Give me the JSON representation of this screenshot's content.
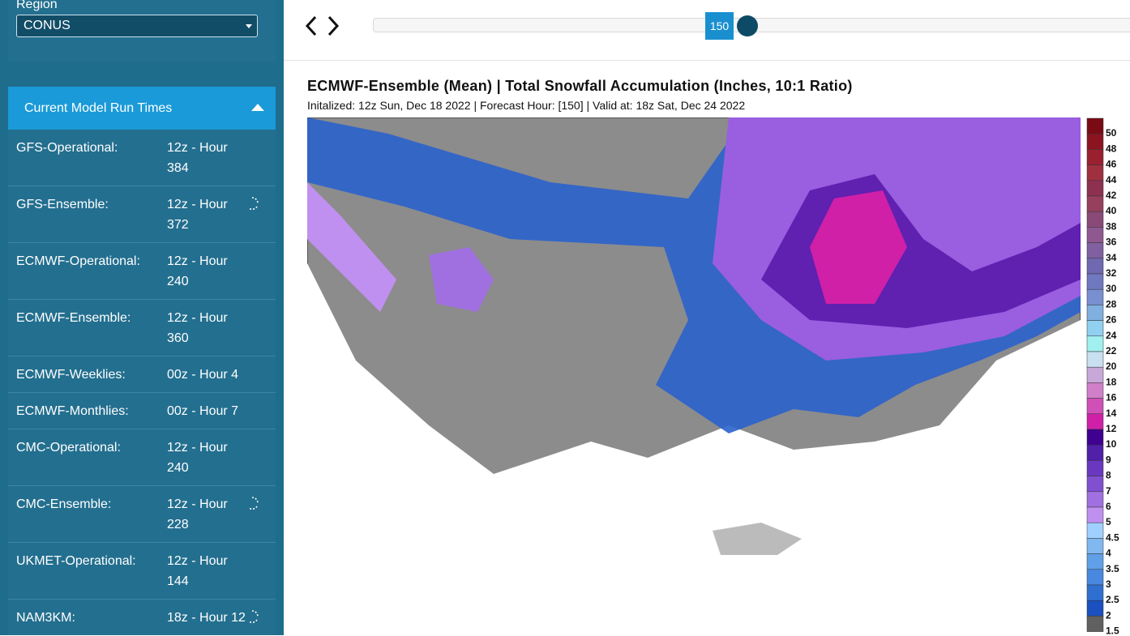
{
  "sidebar": {
    "region_label": "Region",
    "region_value": "CONUS",
    "panel_title": "Current Model Run Times",
    "models": [
      {
        "name": "GFS-Operational:",
        "run": "12z - Hour 384",
        "loading": false
      },
      {
        "name": "GFS-Ensemble:",
        "run": "12z - Hour 372",
        "loading": true
      },
      {
        "name": "ECMWF-Operational:",
        "run": "12z - Hour 240",
        "loading": false
      },
      {
        "name": "ECMWF-Ensemble:",
        "run": "12z - Hour 360",
        "loading": false
      },
      {
        "name": "ECMWF-Weeklies:",
        "run": "00z - Hour 4",
        "loading": false
      },
      {
        "name": "ECMWF-Monthlies:",
        "run": "00z - Hour 7",
        "loading": false
      },
      {
        "name": "CMC-Operational:",
        "run": "12z - Hour 240",
        "loading": false
      },
      {
        "name": "CMC-Ensemble:",
        "run": "12z - Hour 228",
        "loading": true
      },
      {
        "name": "UKMET-Operational:",
        "run": "12z - Hour 144",
        "loading": false
      },
      {
        "name": "NAM3KM:",
        "run": "18z - Hour 12",
        "loading": true
      }
    ]
  },
  "slider": {
    "value": 150
  },
  "map": {
    "title": "ECMWF-Ensemble (Mean) | Total Snowfall Accumulation (Inches, 10:1 Ratio)",
    "subtitle": "Initalized: 12z Sun, Dec 18 2022 | Forecast Hour: [150] | Valid at: 18z Sat, Dec 24 2022",
    "legend": [
      {
        "label": 50,
        "color": "#7a0a14"
      },
      {
        "label": 48,
        "color": "#8c1420"
      },
      {
        "label": 46,
        "color": "#9a2030"
      },
      {
        "label": 44,
        "color": "#a03040"
      },
      {
        "label": 42,
        "color": "#8e3050"
      },
      {
        "label": 40,
        "color": "#96405e"
      },
      {
        "label": 38,
        "color": "#8a4a78"
      },
      {
        "label": 36,
        "color": "#905890"
      },
      {
        "label": 34,
        "color": "#8060a0"
      },
      {
        "label": 32,
        "color": "#7068b0"
      },
      {
        "label": 30,
        "color": "#7078c0"
      },
      {
        "label": 28,
        "color": "#7890d0"
      },
      {
        "label": 26,
        "color": "#80b0e0"
      },
      {
        "label": 24,
        "color": "#90d0f0"
      },
      {
        "label": 22,
        "color": "#a0f0f0"
      },
      {
        "label": 20,
        "color": "#c8e0f0"
      },
      {
        "label": 18,
        "color": "#c8a8d8"
      },
      {
        "label": 16,
        "color": "#d080c8"
      },
      {
        "label": 14,
        "color": "#d050b8"
      },
      {
        "label": 12,
        "color": "#d020a8"
      },
      {
        "label": 10,
        "color": "#400090"
      },
      {
        "label": 9,
        "color": "#5020a8"
      },
      {
        "label": 8,
        "color": "#6a38c0"
      },
      {
        "label": 7,
        "color": "#8050d0"
      },
      {
        "label": 6,
        "color": "#a070e0"
      },
      {
        "label": 5,
        "color": "#c090f0"
      },
      {
        "label": 4.5,
        "color": "#a0d0ff"
      },
      {
        "label": 4,
        "color": "#80b8f0"
      },
      {
        "label": 3.5,
        "color": "#60a0e8"
      },
      {
        "label": 3,
        "color": "#4888e0"
      },
      {
        "label": 2.5,
        "color": "#2f6fd0"
      },
      {
        "label": 2,
        "color": "#1a50c0"
      },
      {
        "label": 1.5,
        "color": "#606060"
      }
    ]
  }
}
